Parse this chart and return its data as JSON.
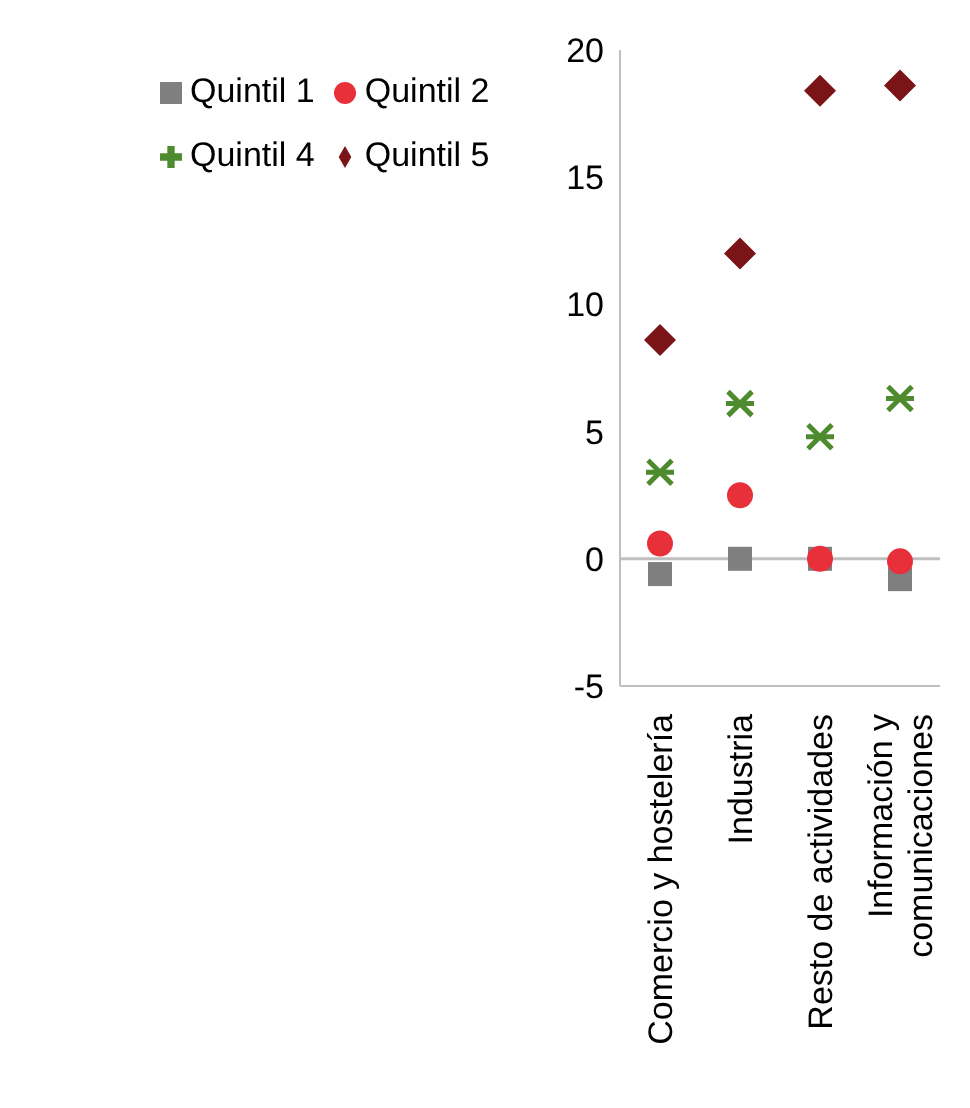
{
  "chart_data": {
    "type": "scatter",
    "categories": [
      "Comercio y hostelería",
      "Industria",
      "Resto de actividades",
      "Información y comunicaciones"
    ],
    "series": [
      {
        "name": "Quintil 1",
        "color": "#7f7f7f",
        "marker": "square",
        "values": [
          -0.6,
          0,
          0,
          -0.8
        ]
      },
      {
        "name": "Quintil 2",
        "color": "#e8303a",
        "marker": "circle",
        "values": [
          0.6,
          2.5,
          0,
          -0.1
        ]
      },
      {
        "name": "Quintil 4",
        "color": "#4e8a2e",
        "marker": "cross",
        "values": [
          3.4,
          6.1,
          4.8,
          6.3
        ]
      },
      {
        "name": "Quintil 5",
        "color": "#7b1416",
        "marker": "diamond",
        "values": [
          8.6,
          12.0,
          18.4,
          18.6
        ]
      }
    ],
    "ylim": [
      -5,
      20
    ],
    "yticks": [
      -5,
      0,
      5,
      10,
      15,
      20
    ],
    "grid": false,
    "legend": "top left",
    "ref_lines": [
      {
        "axis": "y",
        "value": 0,
        "color": "#bfbfbf"
      }
    ]
  }
}
